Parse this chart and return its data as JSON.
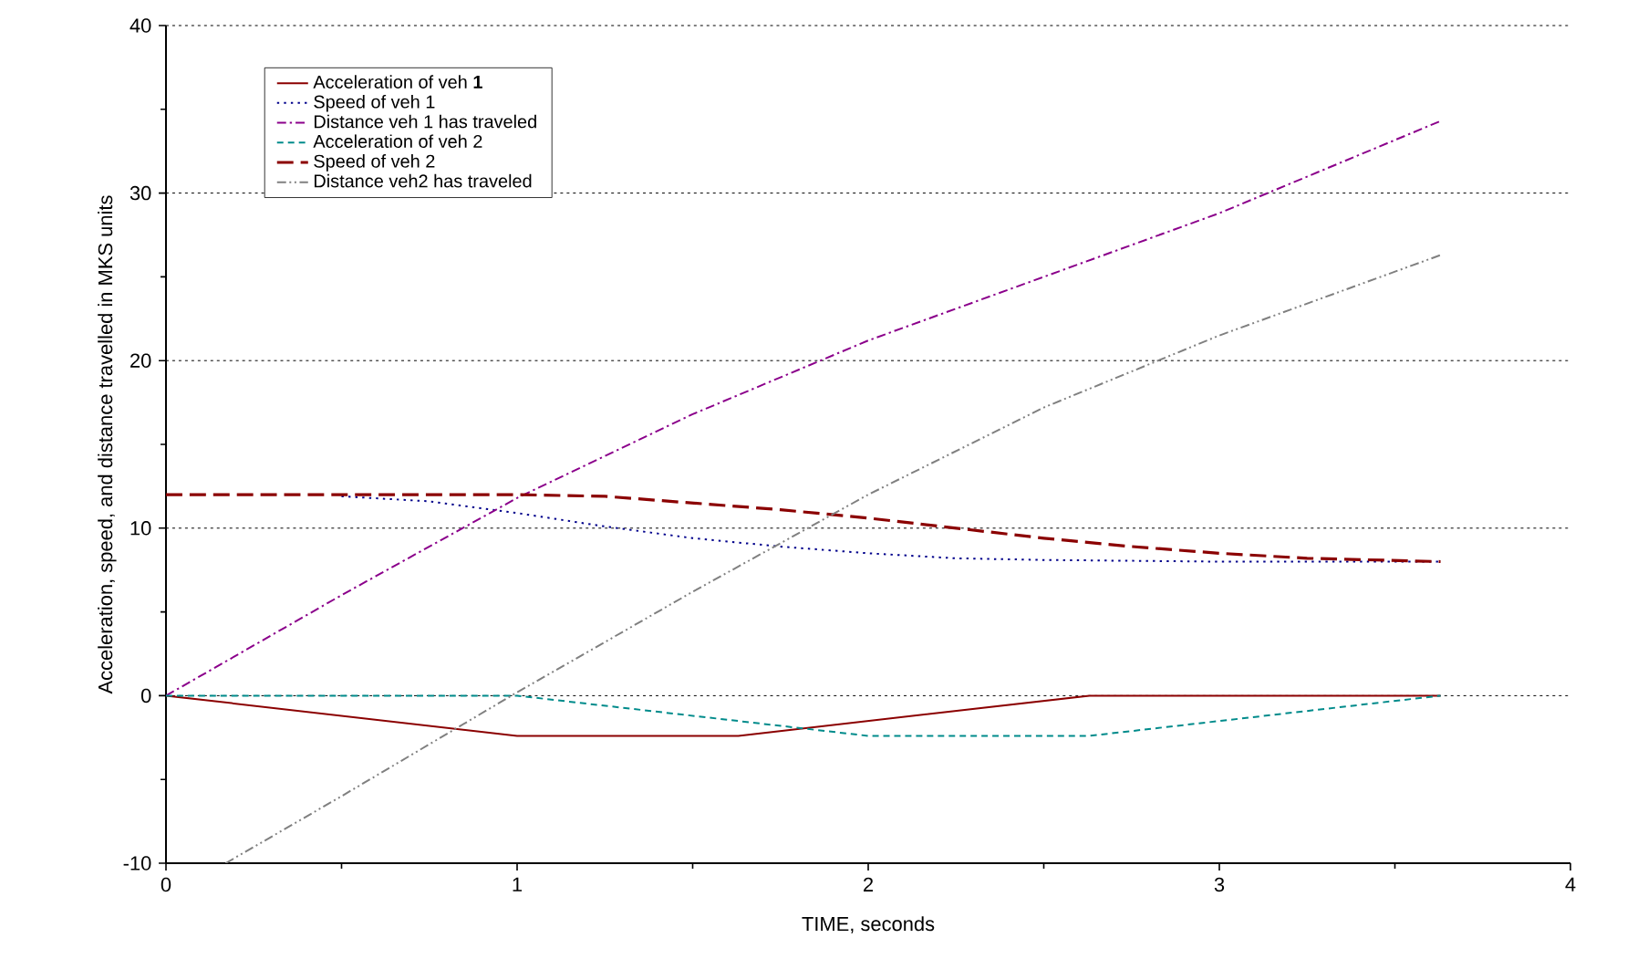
{
  "chart_data": {
    "type": "line",
    "xlabel": "TIME, seconds",
    "ylabel": "Acceleration, speed, and distance travelled in MKS units",
    "xlim": [
      0,
      4
    ],
    "ylim": [
      -10,
      40
    ],
    "xticks": [
      0,
      1,
      2,
      3,
      4
    ],
    "yticks": [
      -10,
      0,
      10,
      20,
      30,
      40
    ],
    "grid": "y",
    "legend": "top left",
    "marker": "none",
    "series": [
      {
        "name": "Acceleration of veh **1**",
        "color": "#8b0000",
        "line_style": "solid",
        "x": [
          0,
          1,
          1.63,
          2.63,
          3.63
        ],
        "values": [
          0,
          -2.4,
          -2.4,
          0,
          0
        ]
      },
      {
        "name": "Speed of veh 1",
        "color": "#00008b",
        "line_style": "dotted",
        "x": [
          0.5,
          0.75,
          1,
          1.25,
          1.5,
          1.75,
          2,
          2.25,
          2.5,
          3,
          3.63
        ],
        "values": [
          11.9,
          11.6,
          10.9,
          10.1,
          9.4,
          8.9,
          8.5,
          8.2,
          8.1,
          8,
          8
        ]
      },
      {
        "name": "Distance veh 1 has traveled",
        "color": "#8b008b",
        "line_style": "dashdot",
        "x": [
          0,
          0.5,
          1,
          1.5,
          2,
          2.5,
          3,
          3.63
        ],
        "values": [
          0,
          6,
          11.8,
          16.8,
          21.2,
          25,
          28.8,
          34.3
        ]
      },
      {
        "name": "Acceleration of veh 2",
        "color": "#008b8b",
        "line_style": "dashed",
        "x": [
          0,
          1,
          2,
          2.63,
          3.63
        ],
        "values": [
          0,
          0,
          -2.4,
          -2.4,
          0
        ]
      },
      {
        "name": "Speed of veh 2",
        "color": "#8b0000",
        "line_style": "longdash",
        "x": [
          0,
          0.5,
          1,
          1.25,
          1.5,
          1.75,
          2,
          2.25,
          2.5,
          2.75,
          3,
          3.25,
          3.63
        ],
        "values": [
          12,
          12,
          12,
          11.9,
          11.5,
          11.1,
          10.6,
          10,
          9.4,
          8.9,
          8.5,
          8.2,
          8
        ]
      },
      {
        "name": "Distance veh2 has traveled",
        "color": "#808080",
        "line_style": "dashdotdot",
        "x": [
          0.17,
          0.5,
          1,
          1.5,
          2,
          2.5,
          3,
          3.63
        ],
        "values": [
          -10,
          -6,
          0.2,
          6.2,
          12,
          17.2,
          21.5,
          26.3
        ]
      }
    ]
  }
}
